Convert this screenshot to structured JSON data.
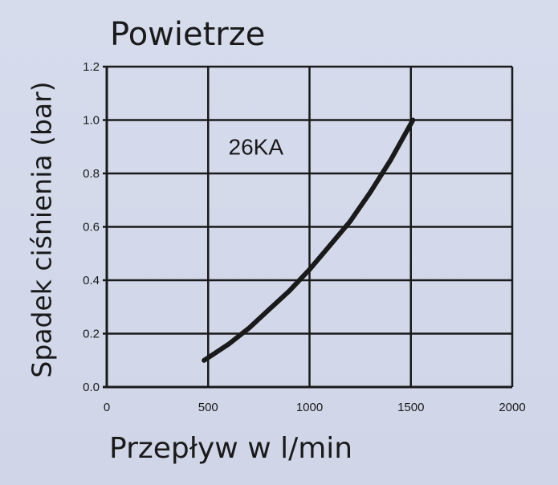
{
  "chart_data": {
    "type": "line",
    "title": "Powietrze",
    "xlabel": "Przepływ w l/min",
    "ylabel": "Spadek ciśnienia (bar)",
    "xlim": [
      0,
      2000
    ],
    "ylim": [
      0,
      1.2
    ],
    "x_ticks": [
      "0",
      "500",
      "1000",
      "1500",
      "2000"
    ],
    "y_ticks": [
      "0.0",
      "0.2",
      "0.4",
      "0.6",
      "0.8",
      "1.0",
      "1.2"
    ],
    "grid": true,
    "annotation": "26KA",
    "series": [
      {
        "x": [
          480,
          600,
          700,
          800,
          900,
          1000,
          1100,
          1200,
          1300,
          1400,
          1510
        ],
        "y": [
          0.1,
          0.16,
          0.22,
          0.29,
          0.36,
          0.44,
          0.53,
          0.62,
          0.73,
          0.85,
          1.0
        ],
        "color": "#1a1a1a"
      }
    ]
  }
}
